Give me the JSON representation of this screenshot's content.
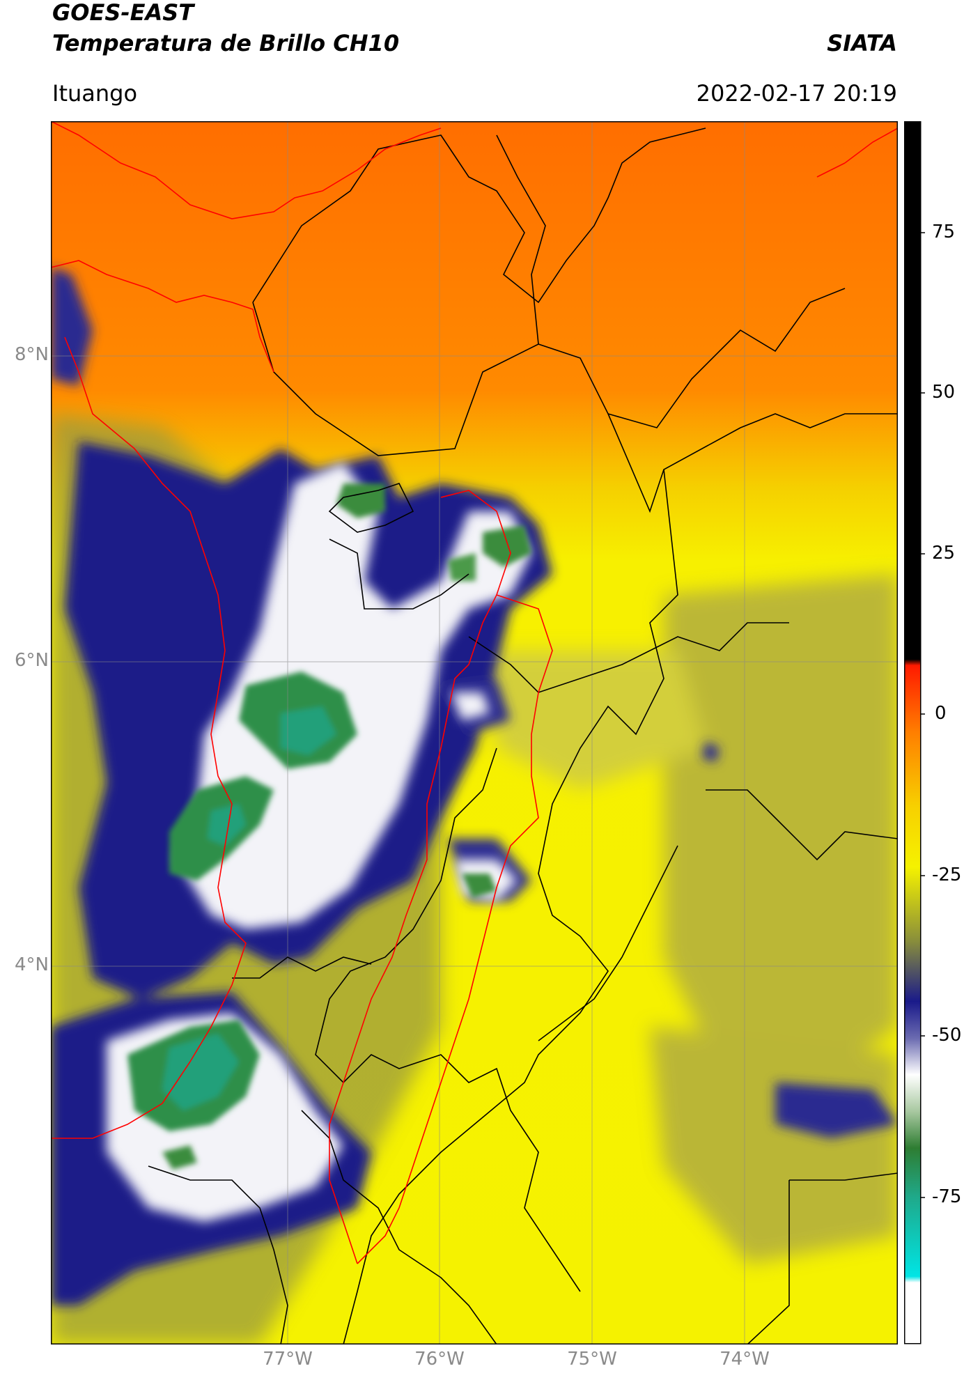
{
  "header": {
    "title_line1": "GOES-EAST",
    "title_line2": "Temperatura de Brillo CH10",
    "organization": "SIATA",
    "place": "Ituango",
    "timestamp": "2022-02-17 20:19"
  },
  "map": {
    "lat_labels": [
      "8°N",
      "6°N",
      "4°N"
    ],
    "lon_labels": [
      "77°W",
      "76°W",
      "75°W",
      "74°W"
    ]
  },
  "colorbar": {
    "tick_labels": [
      "75",
      "50",
      "25",
      "0",
      "-25",
      "-50",
      "-75"
    ],
    "colors": {
      "warm_top": "#000000",
      "warm_red": "#ff1a00",
      "orange": "#ff7f00",
      "yellow": "#f5f200",
      "olive": "#8a8f3a",
      "navy": "#1a1a8a",
      "white": "#ffffff",
      "green": "#2e7d32",
      "teal": "#1fa98a",
      "cyan": "#00e5e5"
    }
  }
}
